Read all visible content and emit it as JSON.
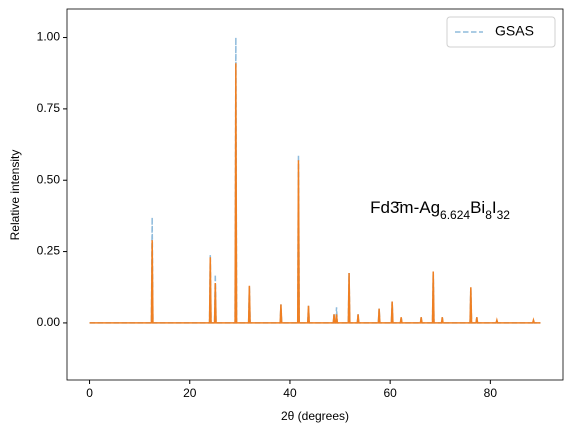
{
  "chart_data": {
    "type": "line",
    "xlabel": "2θ (degrees)",
    "ylabel": "Relative intensity",
    "annotation_parts": [
      {
        "text": "Fd3̄m-Ag",
        "sub": false
      },
      {
        "text": "6.624",
        "sub": true
      },
      {
        "text": "Bi",
        "sub": false
      },
      {
        "text": "8",
        "sub": true
      },
      {
        "text": "I",
        "sub": false
      },
      {
        "text": "32",
        "sub": true
      }
    ],
    "annotation_at": [
      56,
      0.4
    ],
    "xlim": [
      -4.5,
      94.5
    ],
    "ylim": [
      -0.2,
      1.1
    ],
    "xticks": [
      0,
      20,
      40,
      60,
      80
    ],
    "yticks": [
      {
        "value": 0,
        "label": "0.00"
      },
      {
        "value": 0.25,
        "label": "0.25"
      },
      {
        "value": 0.5,
        "label": "0.50"
      },
      {
        "value": 0.75,
        "label": "0.75"
      },
      {
        "value": 1.0,
        "label": "1.00"
      }
    ],
    "legend": "upper right",
    "x": [
      0,
      12.35,
      12.5,
      12.65,
      23.95,
      24.1,
      24.25,
      24.95,
      25.1,
      25.25,
      29.05,
      29.2,
      29.35,
      31.75,
      31.9,
      32.05,
      38.05,
      38.2,
      38.35,
      41.55,
      41.7,
      41.85,
      43.55,
      43.7,
      43.85,
      48.65,
      48.8,
      48.95,
      49.15,
      49.3,
      49.45,
      51.65,
      51.8,
      51.95,
      53.45,
      53.6,
      53.75,
      57.65,
      57.8,
      57.95,
      60.25,
      60.4,
      60.55,
      62.05,
      62.2,
      62.35,
      66.05,
      66.2,
      66.35,
      68.45,
      68.6,
      68.75,
      70.25,
      70.4,
      70.55,
      75.95,
      76.1,
      76.25,
      77.15,
      77.3,
      77.45,
      81.15,
      81.3,
      81.45,
      88.45,
      88.6,
      88.75,
      90
    ],
    "series": [
      {
        "name": "GSAS",
        "color": "#8fbbdc",
        "linestyle": "dashed",
        "values": [
          0,
          0,
          0.37,
          0,
          0,
          0.24,
          0,
          0,
          0.17,
          0,
          0,
          1.0,
          0,
          0,
          0.13,
          0,
          0,
          0.065,
          0,
          0,
          0.59,
          0,
          0,
          0.06,
          0,
          0,
          0.03,
          0,
          0,
          0.055,
          0,
          0,
          0.175,
          0,
          0,
          0.03,
          0,
          0,
          0.05,
          0,
          0,
          0.075,
          0,
          0,
          0.02,
          0,
          0,
          0.02,
          0,
          0,
          0.18,
          0,
          0,
          0.02,
          0,
          0,
          0.125,
          0,
          0,
          0.02,
          0,
          0,
          0.01,
          0,
          0,
          0.01,
          0,
          0
        ]
      },
      {
        "color": "#ef7f22",
        "linestyle": "solid",
        "values": [
          0,
          0,
          0.29,
          0,
          0,
          0.23,
          0,
          0,
          0.14,
          0,
          0,
          0.91,
          0,
          0,
          0.13,
          0,
          0,
          0.065,
          0,
          0,
          0.57,
          0,
          0,
          0.06,
          0,
          0,
          0.03,
          0,
          0,
          0.03,
          0,
          0,
          0.175,
          0,
          0,
          0.03,
          0,
          0,
          0.05,
          0,
          0,
          0.075,
          0,
          0,
          0.02,
          0,
          0,
          0.02,
          0,
          0,
          0.18,
          0,
          0,
          0.02,
          0,
          0,
          0.125,
          0,
          0,
          0.02,
          0,
          0,
          0.01,
          0,
          0,
          0.01,
          0,
          0
        ]
      }
    ]
  }
}
